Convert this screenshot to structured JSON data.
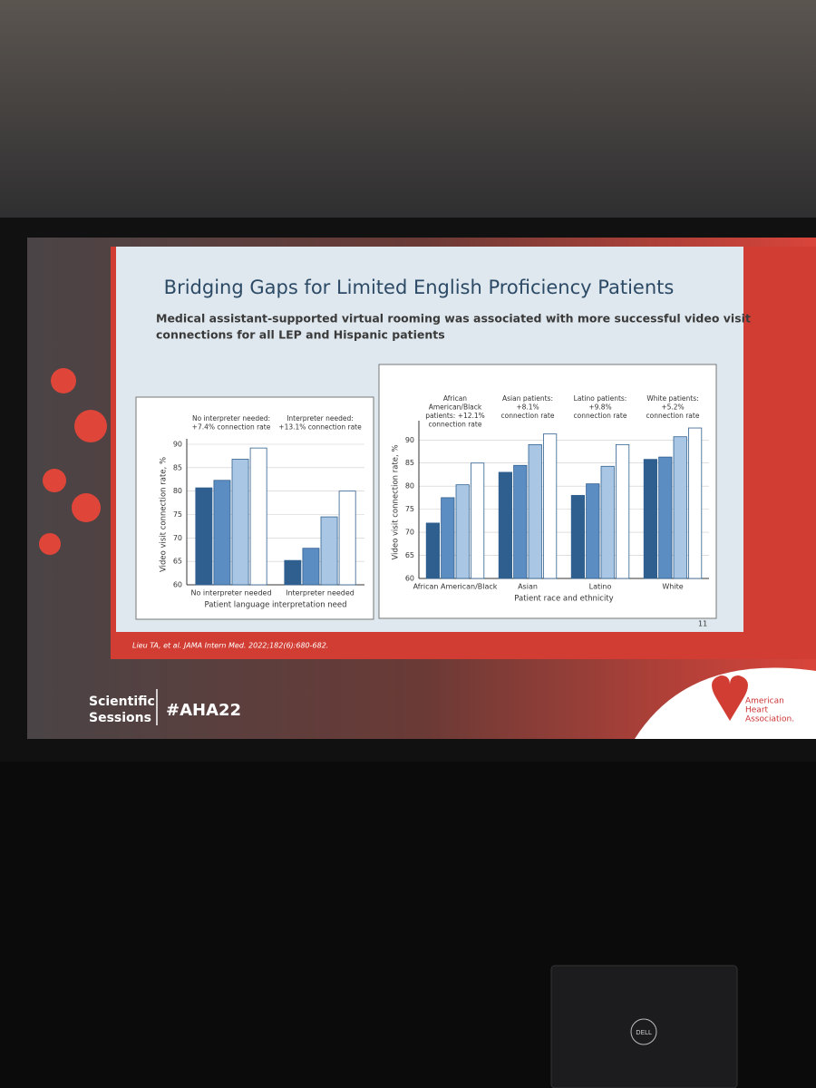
{
  "slide_title": "Bridging Gaps for Limited English Proficiency Patients",
  "subtitle_lines": [
    "Medical assistant-supported virtual rooming was associated with more successful video visit",
    "connections for all LEP and Hispanic patients"
  ],
  "footnote": "Lieu TA, et al. JAMA Intern Med. 2022;182(6):680-682.",
  "page_number": "11",
  "event_lines": [
    "Scientific",
    "Sessions"
  ],
  "hashtag": "#AHA22",
  "logo_lines": [
    "American",
    "Heart",
    "Association."
  ],
  "laptop_brand": "DELL",
  "chart_data": [
    {
      "type": "bar",
      "categories": [
        "No interpreter needed",
        "Interpreter needed"
      ],
      "annotations": [
        [
          "No interpreter needed:",
          "+7.4% connection rate"
        ],
        [
          "Interpreter needed:",
          "+13.1% connection rate"
        ]
      ],
      "series": [
        {
          "color": "#2f5f8f",
          "values": [
            80.7,
            65.2
          ]
        },
        {
          "color": "#5b8cc2",
          "values": [
            82.3,
            67.8
          ]
        },
        {
          "color": "#a9c7e5",
          "values": [
            86.8,
            74.5
          ]
        },
        {
          "color": "#ffffff",
          "values": [
            89.2,
            80.0
          ]
        }
      ],
      "y_label": "Video visit connection rate, %",
      "x_label": "Patient language interpretation need",
      "ylim": [
        60,
        90
      ],
      "yticks": [
        60,
        65,
        70,
        75,
        80,
        85,
        90
      ],
      "grid": true
    },
    {
      "type": "bar",
      "categories": [
        "African American/Black",
        "Asian",
        "Latino",
        "White"
      ],
      "annotations": [
        [
          "African",
          "American/Black",
          "patients: +12.1%",
          "connection rate"
        ],
        [
          "Asian patients:",
          "+8.1%",
          "connection rate"
        ],
        [
          "Latino patients:",
          "+9.8%",
          "connection rate"
        ],
        [
          "White patients:",
          "+5.2%",
          "connection rate"
        ]
      ],
      "series": [
        {
          "color": "#2f5f8f",
          "values": [
            72.0,
            83.0,
            78.0,
            85.8
          ]
        },
        {
          "color": "#5b8cc2",
          "values": [
            77.5,
            84.5,
            80.5,
            86.3
          ]
        },
        {
          "color": "#a9c7e5",
          "values": [
            80.3,
            89.0,
            84.3,
            90.7
          ]
        },
        {
          "color": "#ffffff",
          "values": [
            85.0,
            91.3,
            89.0,
            92.6
          ]
        }
      ],
      "y_label": "Video visit connection rate, %",
      "x_label": "Patient race and ethnicity",
      "ylim": [
        60,
        93
      ],
      "yticks": [
        60,
        65,
        70,
        75,
        80,
        85,
        90
      ],
      "grid": true
    }
  ]
}
